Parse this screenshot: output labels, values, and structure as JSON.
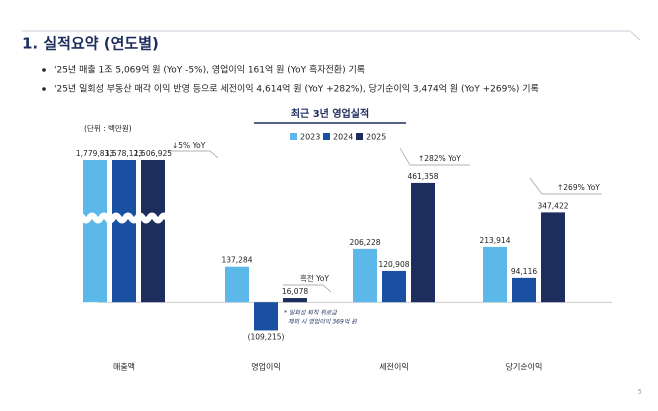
{
  "header": {
    "title": "1. 실적요약 (연도별)",
    "bullets": [
      "'25년 매출 1조 5,069억 원 (YoY -5%), 영업이익 161억 원 (YoY 흑자전환) 기록",
      "'25년 일회성 부동산 매각 이익 반영 등으로 세전이익 4,614억 원 (YoY +282%), 당기순이익 3,474억 원 (YoY +269%) 기록"
    ]
  },
  "chart_data": {
    "type": "bar",
    "title": "최근 3년 영업실적",
    "unit": "(단위 : 백만원)",
    "categories": [
      "매출액",
      "영업이익",
      "세전이익",
      "당기순이익"
    ],
    "series": [
      {
        "name": "2023",
        "color": "#5bb8e8",
        "values": [
          1779833,
          137284,
          206228,
          213914
        ],
        "value_labels": [
          "1,779,833",
          "137,284",
          "206,228",
          "213,914"
        ]
      },
      {
        "name": "2024",
        "color": "#1a50a2",
        "values": [
          1578123,
          -109215,
          120908,
          94116
        ],
        "value_labels": [
          "1,578,123",
          "(109,215)",
          "120,908",
          "94,116"
        ]
      },
      {
        "name": "2025",
        "color": "#1d2d5e",
        "values": [
          1506925,
          16078,
          461358,
          347422
        ],
        "value_labels": [
          "1,506,925",
          "16,078",
          "461,358",
          "347,422"
        ]
      }
    ],
    "ylim": [
      -150000,
      550000
    ],
    "annotations": [
      "↓5% YoY",
      "흑전 YoY",
      "↑282% YoY",
      "↑269% YoY"
    ],
    "note": [
      "* 일회성 퇴직 위로금",
      "제외 시 영업이익 369억 원"
    ]
  },
  "page_number": "5"
}
